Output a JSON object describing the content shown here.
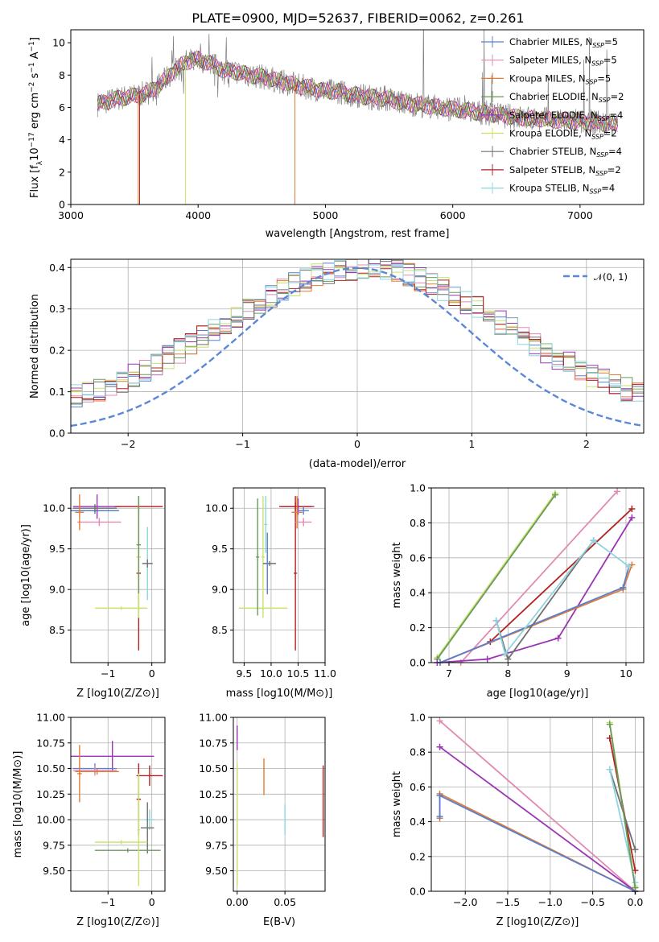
{
  "title": "PLATE=0900, MJD=52637, FIBERID=0062, z=0.261",
  "colors": {
    "chabrier_miles": "#5b7fcf",
    "salpeter_miles": "#e28ab4",
    "kroupa_miles": "#e07b39",
    "chabrier_elodie": "#6b9a5e",
    "salpeter_elodie": "#9b35b5",
    "kroupa_elodie": "#c8e36a",
    "chabrier_stelib": "#707070",
    "salpeter_stelib": "#b22222",
    "kroupa_stelib": "#8fd5e0",
    "normal": "#5b88d6"
  },
  "chart_data": [
    {
      "id": "spectrum",
      "type": "line",
      "xlabel": "wavelength [Angstrom, rest frame]",
      "ylabel": "Flux [f_λ 10^-17 erg cm^-2 s^-1 A^-1]",
      "xlim": [
        3000,
        7500
      ],
      "ylim": [
        0,
        10.8
      ],
      "xticks": [
        "3000",
        "4000",
        "5000",
        "6000",
        "7000"
      ],
      "yticks": [
        "0",
        "2",
        "4",
        "6",
        "8",
        "10"
      ],
      "grid": false,
      "legend_position": "top-right",
      "legend": [
        {
          "main": "Chabrier MILES, N",
          "sub": "SSP",
          "tail": "=5",
          "color": "#5b7fcf"
        },
        {
          "main": "Salpeter MILES, N",
          "sub": "SSP",
          "tail": "=5",
          "color": "#e28ab4"
        },
        {
          "main": "Kroupa MILES, N",
          "sub": "SSP",
          "tail": "=5",
          "color": "#e07b39"
        },
        {
          "main": "Chabrier ELODIE, N",
          "sub": "SSP",
          "tail": "=2",
          "color": "#6b9a5e"
        },
        {
          "main": "Salpeter ELODIE, N",
          "sub": "SSP",
          "tail": "=4",
          "color": "#9b35b5"
        },
        {
          "main": "Kroupa ELODIE, N",
          "sub": "SSP",
          "tail": "=2",
          "color": "#c8e36a"
        },
        {
          "main": "Chabrier STELIB, N",
          "sub": "SSP",
          "tail": "=4",
          "color": "#707070"
        },
        {
          "main": "Salpeter STELIB, N",
          "sub": "SSP",
          "tail": "=2",
          "color": "#b22222"
        },
        {
          "main": "Kroupa STELIB, N",
          "sub": "SSP",
          "tail": "=4",
          "color": "#8fd5e0"
        }
      ],
      "model_x": [
        3210,
        3300,
        3400,
        3500,
        3600,
        3700,
        3800,
        3900,
        4000,
        4100,
        4200,
        4300,
        4400,
        4500,
        4600,
        4700,
        4800,
        4900,
        5000,
        5100,
        5200,
        5300,
        5400,
        5500,
        5600,
        5700,
        5800,
        5900,
        6000,
        6100,
        6200,
        6300,
        6400,
        6500,
        6600,
        6700,
        6800,
        6900,
        7000,
        7100,
        7200,
        7300
      ],
      "model_y": [
        6.2,
        6.4,
        6.6,
        6.7,
        6.9,
        7.4,
        8.2,
        8.8,
        9.0,
        8.7,
        8.3,
        8.2,
        8.0,
        7.9,
        7.7,
        7.5,
        7.3,
        7.2,
        7.0,
        7.0,
        6.8,
        6.7,
        6.6,
        6.5,
        6.3,
        6.2,
        6.1,
        6.0,
        5.9,
        5.8,
        5.7,
        5.6,
        5.5,
        5.4,
        5.3,
        5.3,
        5.2,
        5.2,
        5.1,
        5.1,
        5.0,
        5.0
      ]
    },
    {
      "id": "residuals",
      "type": "line",
      "xlabel": "(data-model)/error",
      "ylabel": "Normed distribution",
      "xlim": [
        -2.5,
        2.5
      ],
      "ylim": [
        0,
        0.42
      ],
      "xticks": [
        "−2",
        "−1",
        "0",
        "1",
        "2"
      ],
      "yticks": [
        "0.0",
        "0.1",
        "0.2",
        "0.3",
        "0.4"
      ],
      "grid": true,
      "legend_position": "top-right",
      "normal_label": "𝒩(0, 1)",
      "normal": {
        "mean": 0,
        "sigma": 1
      }
    },
    {
      "id": "age-vs-z",
      "type": "scatter",
      "xlabel": "Z [log10(Z/Z⊙)]",
      "ylabel": "age  [log10(age/yr)]",
      "xlim": [
        -1.85,
        0.3
      ],
      "ylim": [
        8.1,
        10.25
      ],
      "xticks": [
        "−1",
        "0"
      ],
      "yticks": [
        "8.5",
        "9.0",
        "9.5",
        "10.0"
      ],
      "grid": true,
      "points": [
        {
          "x": -1.3,
          "y": 9.97,
          "xerr": 0.55,
          "yerr": 0.04,
          "color": "#5b7fcf"
        },
        {
          "x": -1.25,
          "y": 10.02,
          "xerr": 0.55,
          "yerr": 0.15,
          "color": "#9b35b5"
        },
        {
          "x": -1.3,
          "y": 10.0,
          "xerr": 0.5,
          "yerr": 0.05,
          "color": "#707070"
        },
        {
          "x": -1.2,
          "y": 9.83,
          "xerr": 0.5,
          "yerr": 0.05,
          "color": "#e28ab4"
        },
        {
          "x": -1.65,
          "y": 9.95,
          "xerr": 0.1,
          "yerr": 0.22,
          "color": "#e07b39"
        },
        {
          "x": -0.3,
          "y": 10.02,
          "xerr": 0.55,
          "yerr": 0.05,
          "color": "#b22222"
        },
        {
          "x": -0.3,
          "y": 9.2,
          "xerr": 0.05,
          "yerr": 0.95,
          "color": "#b22222"
        },
        {
          "x": -0.3,
          "y": 9.4,
          "xerr": 0.05,
          "yerr": 0.75,
          "color": "#c8e36a"
        },
        {
          "x": -0.7,
          "y": 8.77,
          "xerr": 0.6,
          "yerr": 0.02,
          "color": "#c8e36a"
        },
        {
          "x": -0.1,
          "y": 9.32,
          "xerr": 0.1,
          "yerr": 0.45,
          "color": "#8fd5e0"
        },
        {
          "x": -0.1,
          "y": 9.32,
          "xerr": 0.12,
          "yerr": 0.05,
          "color": "#707070"
        },
        {
          "x": -0.3,
          "y": 9.55,
          "xerr": 0.05,
          "yerr": 0.6,
          "color": "#6b9a5e"
        }
      ]
    },
    {
      "id": "age-vs-mass",
      "type": "scatter",
      "xlabel": "mass [log10(M/M⊙)]",
      "ylabel": "",
      "xlim": [
        9.3,
        11.0
      ],
      "ylim": [
        8.1,
        10.25
      ],
      "xticks": [
        "9.5",
        "10.0",
        "10.5",
        "11.0"
      ],
      "yticks": [
        "8.5",
        "9.0",
        "9.5",
        "10.0"
      ],
      "grid": true,
      "points": [
        {
          "x": 10.5,
          "y": 10.02,
          "xerr": 0.3,
          "yerr": 0.1,
          "color": "#9b35b5"
        },
        {
          "x": 10.45,
          "y": 10.02,
          "xerr": 0.3,
          "yerr": 0.05,
          "color": "#b22222"
        },
        {
          "x": 10.45,
          "y": 9.2,
          "xerr": 0.03,
          "yerr": 0.95,
          "color": "#b22222"
        },
        {
          "x": 10.48,
          "y": 9.95,
          "xerr": 0.1,
          "yerr": 0.2,
          "color": "#e07b39"
        },
        {
          "x": 10.6,
          "y": 9.83,
          "xerr": 0.15,
          "yerr": 0.05,
          "color": "#e28ab4"
        },
        {
          "x": 10.6,
          "y": 9.97,
          "xerr": 0.1,
          "yerr": 0.05,
          "color": "#5b7fcf"
        },
        {
          "x": 9.85,
          "y": 8.77,
          "xerr": 0.45,
          "yerr": 0.02,
          "color": "#c8e36a"
        },
        {
          "x": 9.85,
          "y": 9.4,
          "xerr": 0.03,
          "yerr": 0.75,
          "color": "#c8e36a"
        },
        {
          "x": 9.75,
          "y": 9.4,
          "xerr": 0.03,
          "yerr": 0.72,
          "color": "#6b9a5e"
        },
        {
          "x": 9.97,
          "y": 9.32,
          "xerr": 0.12,
          "yerr": 0.03,
          "color": "#707070"
        },
        {
          "x": 9.93,
          "y": 9.32,
          "xerr": 0.03,
          "yerr": 0.38,
          "color": "#5b7fcf"
        },
        {
          "x": 9.9,
          "y": 9.8,
          "xerr": 0.03,
          "yerr": 0.35,
          "color": "#8fd5e0"
        }
      ]
    },
    {
      "id": "weight-vs-age",
      "type": "line",
      "xlabel": "age  [log10(age/yr)]",
      "ylabel": "mass weight",
      "xlim": [
        6.7,
        10.3
      ],
      "ylim": [
        0,
        1.0
      ],
      "xticks": [
        "7",
        "8",
        "9",
        "10"
      ],
      "yticks": [
        "0.0",
        "0.2",
        "0.4",
        "0.6",
        "0.8",
        "1.0"
      ],
      "grid": true,
      "series": [
        {
          "color": "#c8e36a",
          "x": [
            6.8,
            8.8
          ],
          "y": [
            0.03,
            0.97
          ]
        },
        {
          "color": "#6b9a5e",
          "x": [
            6.8,
            8.8
          ],
          "y": [
            0.02,
            0.96
          ]
        },
        {
          "color": "#e28ab4",
          "x": [
            7.2,
            9.85
          ],
          "y": [
            0.0,
            0.98
          ]
        },
        {
          "color": "#b22222",
          "x": [
            7.7,
            10.1
          ],
          "y": [
            0.12,
            0.88
          ]
        },
        {
          "color": "#9b35b5",
          "x": [
            6.8,
            7.65,
            8.85,
            10.1
          ],
          "y": [
            0.0,
            0.02,
            0.14,
            0.83
          ]
        },
        {
          "color": "#e07b39",
          "x": [
            6.85,
            9.95,
            10.1
          ],
          "y": [
            0.0,
            0.42,
            0.56
          ]
        },
        {
          "color": "#5b7fcf",
          "x": [
            6.85,
            9.95,
            10.05
          ],
          "y": [
            0.0,
            0.43,
            0.55
          ]
        },
        {
          "color": "#707070",
          "x": [
            7.8,
            8.0,
            9.45
          ],
          "y": [
            0.24,
            0.02,
            0.7
          ]
        },
        {
          "color": "#8fd5e0",
          "x": [
            7.8,
            7.95,
            9.45,
            10.05
          ],
          "y": [
            0.24,
            0.05,
            0.7,
            0.55
          ]
        }
      ]
    },
    {
      "id": "mass-vs-z",
      "type": "scatter",
      "xlabel": "Z [log10(Z/Z⊙)]",
      "ylabel": "mass [log10(M/M⊙)]",
      "xlim": [
        -1.85,
        0.3
      ],
      "ylim": [
        9.3,
        11.0
      ],
      "xticks": [
        "−1",
        "0"
      ],
      "yticks": [
        "9.50",
        "9.75",
        "10.00",
        "10.25",
        "10.50",
        "10.75",
        "11.00"
      ],
      "grid": true,
      "points": [
        {
          "x": -0.9,
          "y": 10.62,
          "xerr": 0.95,
          "yerr": 0.15,
          "color": "#9b35b5"
        },
        {
          "x": -1.3,
          "y": 10.5,
          "xerr": 0.5,
          "yerr": 0.05,
          "color": "#5b7fcf"
        },
        {
          "x": -1.3,
          "y": 10.48,
          "xerr": 0.5,
          "yerr": 0.05,
          "color": "#e28ab4"
        },
        {
          "x": -1.25,
          "y": 10.47,
          "xerr": 0.5,
          "yerr": 0.03,
          "color": "#e07b39"
        },
        {
          "x": -1.65,
          "y": 10.45,
          "xerr": 0.05,
          "yerr": 0.28,
          "color": "#e07b39"
        },
        {
          "x": -0.05,
          "y": 10.43,
          "xerr": 0.3,
          "yerr": 0.1,
          "color": "#b22222"
        },
        {
          "x": -0.3,
          "y": 10.2,
          "xerr": 0.05,
          "yerr": 0.35,
          "color": "#b22222"
        },
        {
          "x": -0.05,
          "y": 10.0,
          "xerr": 0.12,
          "yerr": 0.1,
          "color": "#8fd5e0"
        },
        {
          "x": -0.1,
          "y": 9.92,
          "xerr": 0.15,
          "yerr": 0.25,
          "color": "#707070"
        },
        {
          "x": -0.7,
          "y": 9.78,
          "xerr": 0.6,
          "yerr": 0.02,
          "color": "#c8e36a"
        },
        {
          "x": -0.55,
          "y": 9.7,
          "xerr": 0.75,
          "yerr": 0.02,
          "color": "#6b9a5e"
        },
        {
          "x": -0.3,
          "y": 9.9,
          "xerr": 0.03,
          "yerr": 0.55,
          "color": "#c8e36a"
        }
      ]
    },
    {
      "id": "mass-vs-ebv",
      "type": "scatter",
      "xlabel": "E(B-V)",
      "ylabel": "",
      "xlim": [
        -0.004,
        0.092
      ],
      "ylim": [
        9.3,
        11.0
      ],
      "xticks": [
        "0.00",
        "0.05"
      ],
      "yticks": [
        "9.50",
        "9.75",
        "10.00",
        "10.25",
        "10.50",
        "10.75",
        "11.00"
      ],
      "grid": true,
      "points": [
        {
          "x": 0.0,
          "y": 10.8,
          "xerr": 0,
          "yerr": 0.12,
          "color": "#9b35b5"
        },
        {
          "x": 0.0,
          "y": 9.95,
          "xerr": 0,
          "yerr": 0.6,
          "color": "#c8e36a"
        },
        {
          "x": 0.028,
          "y": 10.42,
          "xerr": 0,
          "yerr": 0.18,
          "color": "#e07b39"
        },
        {
          "x": 0.05,
          "y": 10.0,
          "xerr": 0,
          "yerr": 0.15,
          "color": "#8fd5e0"
        },
        {
          "x": 0.09,
          "y": 10.18,
          "xerr": 0,
          "yerr": 0.35,
          "color": "#b22222"
        }
      ]
    },
    {
      "id": "weight-vs-z",
      "type": "line",
      "xlabel": "Z [log10(Z/Z⊙)]",
      "ylabel": "mass weight",
      "xlim": [
        -2.4,
        0.1
      ],
      "ylim": [
        0,
        1.0
      ],
      "xticks": [
        "−2.0",
        "−1.5",
        "−1.0",
        "−0.5",
        "0.0"
      ],
      "yticks": [
        "0.0",
        "0.2",
        "0.4",
        "0.6",
        "0.8",
        "1.0"
      ],
      "grid": true,
      "series": [
        {
          "color": "#e28ab4",
          "x": [
            -2.3,
            0.0
          ],
          "y": [
            0.98,
            0.0
          ]
        },
        {
          "color": "#9b35b5",
          "x": [
            -2.3,
            0.0
          ],
          "y": [
            0.83,
            0.0
          ]
        },
        {
          "color": "#e07b39",
          "x": [
            -2.3,
            -2.3,
            0.0
          ],
          "y": [
            0.42,
            0.56,
            0.0
          ]
        },
        {
          "color": "#5b7fcf",
          "x": [
            -2.3,
            -2.3,
            0.0
          ],
          "y": [
            0.43,
            0.55,
            0.0
          ]
        },
        {
          "color": "#c8e36a",
          "x": [
            -0.3,
            0.0
          ],
          "y": [
            0.97,
            0.03
          ]
        },
        {
          "color": "#b22222",
          "x": [
            -0.3,
            0.0
          ],
          "y": [
            0.88,
            0.12
          ]
        },
        {
          "color": "#707070",
          "x": [
            -0.3,
            0.0
          ],
          "y": [
            0.7,
            0.24
          ]
        },
        {
          "color": "#8fd5e0",
          "x": [
            -0.3,
            0.0
          ],
          "y": [
            0.7,
            0.05
          ]
        },
        {
          "color": "#6b9a5e",
          "x": [
            -0.3,
            0.0
          ],
          "y": [
            0.96,
            0.02
          ]
        }
      ]
    }
  ]
}
